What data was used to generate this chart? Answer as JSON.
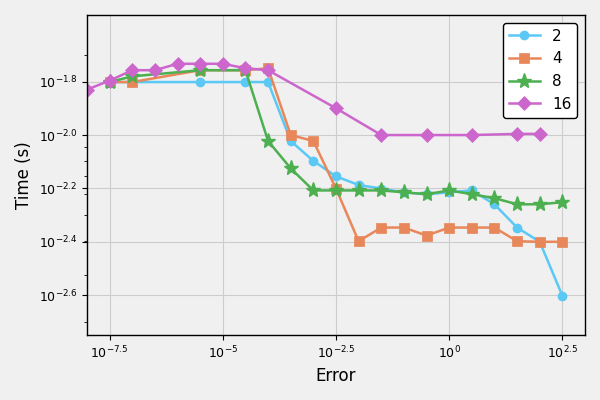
{
  "xlabel": "Error",
  "ylabel": "Time (s)",
  "series": [
    {
      "label": "2",
      "color": "#5bc8f5",
      "marker": "o",
      "x": [
        3.16e-08,
        1e-07,
        3.16e-06,
        3.16e-05,
        0.0001,
        0.000316,
        0.001,
        0.00316,
        0.01,
        0.0316,
        0.1,
        0.316,
        1.0,
        3.16,
        10.0,
        31.6,
        100.0,
        316.0
      ],
      "y": [
        0.0158,
        0.0158,
        0.0158,
        0.0158,
        0.0158,
        0.0095,
        0.008,
        0.007,
        0.0065,
        0.0063,
        0.0061,
        0.006,
        0.0061,
        0.0062,
        0.0055,
        0.0045,
        0.00398,
        0.0025
      ]
    },
    {
      "label": "4",
      "color": "#e8875a",
      "marker": "s",
      "x": [
        3.16e-08,
        1e-07,
        3.16e-06,
        3.16e-05,
        0.0001,
        0.000316,
        0.001,
        0.00316,
        0.01,
        0.0316,
        0.1,
        0.316,
        1.0,
        3.16,
        10.0,
        31.6,
        100.0,
        316.0
      ],
      "y": [
        0.0158,
        0.0158,
        0.0175,
        0.0175,
        0.0178,
        0.01,
        0.0095,
        0.0063,
        0.004,
        0.0045,
        0.0045,
        0.0042,
        0.0045,
        0.0045,
        0.0045,
        0.004,
        0.00398,
        0.00398
      ]
    },
    {
      "label": "8",
      "color": "#4caf50",
      "marker": "*",
      "x": [
        3.16e-08,
        1e-07,
        3.16e-06,
        3.16e-05,
        0.0001,
        0.000316,
        0.001,
        0.00316,
        0.01,
        0.0316,
        0.1,
        0.316,
        1.0,
        3.16,
        10.0,
        31.6,
        100.0,
        316.0
      ],
      "y": [
        0.0158,
        0.0166,
        0.0175,
        0.0175,
        0.0095,
        0.0075,
        0.0062,
        0.0062,
        0.0062,
        0.0062,
        0.0061,
        0.006,
        0.0062,
        0.006,
        0.0058,
        0.0055,
        0.0055,
        0.0056
      ]
    },
    {
      "label": "16",
      "color": "#cc66cc",
      "marker": "D",
      "x": [
        1e-08,
        3.16e-08,
        1e-07,
        3.16e-07,
        1e-06,
        3.16e-06,
        1e-05,
        3.16e-05,
        0.0001,
        0.00316,
        0.0316,
        0.316,
        3.16,
        31.6,
        100.0
      ],
      "y": [
        0.0148,
        0.016,
        0.0175,
        0.0175,
        0.0185,
        0.0185,
        0.0185,
        0.0178,
        0.0175,
        0.0126,
        0.01,
        0.01,
        0.01,
        0.0101,
        0.0101
      ]
    }
  ],
  "xlim_exp": [
    -8.0,
    3.0
  ],
  "ylim_exp": [
    -2.75,
    -1.55
  ],
  "xticks_exp": [
    -7.5,
    -5.0,
    -2.5,
    0.0,
    2.5
  ],
  "yticks_exp": [
    -1.8,
    -2.0,
    -2.2,
    -2.4,
    -2.6
  ],
  "grid": true,
  "legend_loc": "upper right",
  "bg_color": "#f0f0f0"
}
